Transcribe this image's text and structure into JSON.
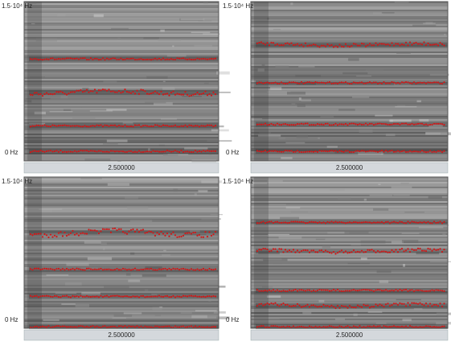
{
  "panels": [
    {
      "y_max_label": "1.5·10⁴ Hz",
      "y_min_label": "0 Hz",
      "x_label": "2.500000"
    },
    {
      "y_max_label": "1.5·10⁴ Hz",
      "y_min_label": "0 Hz",
      "x_label": "2.500000"
    },
    {
      "y_max_label": "1.5·10⁴ Hz",
      "y_min_label": "0 Hz",
      "x_label": "2.500000"
    },
    {
      "y_max_label": "1.5·10⁴ Hz",
      "y_min_label": "0 Hz",
      "x_label": "2.500000"
    }
  ]
}
